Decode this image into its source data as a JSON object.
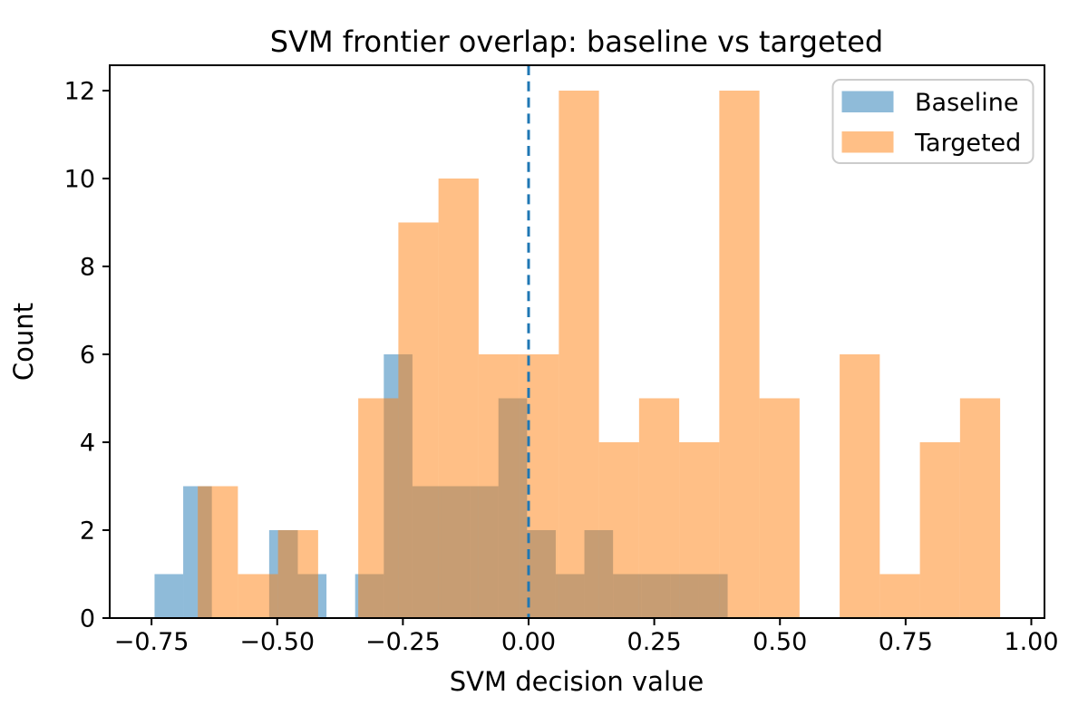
{
  "chart_data": {
    "type": "bar",
    "subtype": "overlapping_histogram",
    "title": "SVM frontier overlap: baseline vs targeted",
    "xlabel": "SVM decision value",
    "ylabel": "Count",
    "xlim": [
      -0.8332,
      1.0262
    ],
    "ylim": [
      0,
      12.577
    ],
    "x_ticks": [
      -0.75,
      -0.5,
      -0.25,
      0,
      0.25,
      0.5,
      0.75,
      1
    ],
    "x_tick_labels": [
      "−0.75",
      "−0.50",
      "−0.25",
      "0.00",
      "0.25",
      "0.50",
      "0.75",
      "1.00"
    ],
    "y_ticks": [
      0,
      2,
      4,
      6,
      8,
      10,
      12
    ],
    "y_tick_labels": [
      "0",
      "2",
      "4",
      "6",
      "8",
      "10",
      "12"
    ],
    "grid": false,
    "legend_position": "upper right",
    "vline": {
      "x": 0.0,
      "color": "#1f77b4",
      "style": "dashed"
    },
    "series": [
      {
        "name": "Baseline",
        "color": "#1f77b4",
        "fill_opacity": 0.5,
        "bin_start": -0.744,
        "bin_width": 0.057,
        "counts": [
          1,
          3,
          0,
          0,
          2,
          1,
          0,
          1,
          6,
          3,
          3,
          3,
          5,
          2,
          1,
          2,
          1,
          1,
          1,
          1
        ]
      },
      {
        "name": "Targeted",
        "color": "#ff7f0e",
        "fill_opacity": 0.5,
        "bin_start": -0.658,
        "bin_width": 0.0798,
        "counts": [
          3,
          1,
          2,
          0,
          5,
          9,
          10,
          6,
          6,
          12,
          4,
          5,
          4,
          12,
          5,
          0,
          6,
          1,
          4,
          5
        ]
      }
    ]
  },
  "legend": {
    "items": [
      {
        "label": "Baseline",
        "color": "#1f77b4",
        "fill_opacity": 0.5
      },
      {
        "label": "Targeted",
        "color": "#ff7f0e",
        "fill_opacity": 0.5
      }
    ]
  }
}
